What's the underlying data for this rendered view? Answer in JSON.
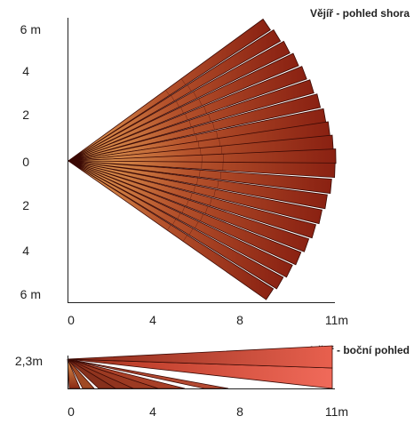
{
  "top_view": {
    "title": "Vějíř - pohled shora",
    "y_labels": [
      "6 m",
      "4",
      "2",
      "0",
      "2",
      "4",
      "6 m"
    ],
    "x_labels": [
      "0",
      "4",
      "8",
      "11m"
    ],
    "beam_angles_deg": [
      -34.5,
      -31,
      -27.5,
      -24,
      -20.5,
      -17,
      -13.5,
      -10,
      -7,
      -4,
      -1,
      2,
      5.5,
      9,
      12.5,
      16,
      19.5,
      23,
      26.5,
      30,
      33.5
    ],
    "colors": {
      "start": "#e6a85a",
      "mid": "#b5532c",
      "end": "#8a2112",
      "edge": "#3b0a05"
    }
  },
  "side_view": {
    "title": "Vějíř - boční pohled",
    "y_label": "2,3m",
    "x_labels": [
      "0",
      "4",
      "8",
      "11m"
    ],
    "colors": {
      "start": "#7a2a18",
      "end": "#f06a5a",
      "short": "#9a3a1e",
      "edge": "#3b0a05"
    }
  }
}
